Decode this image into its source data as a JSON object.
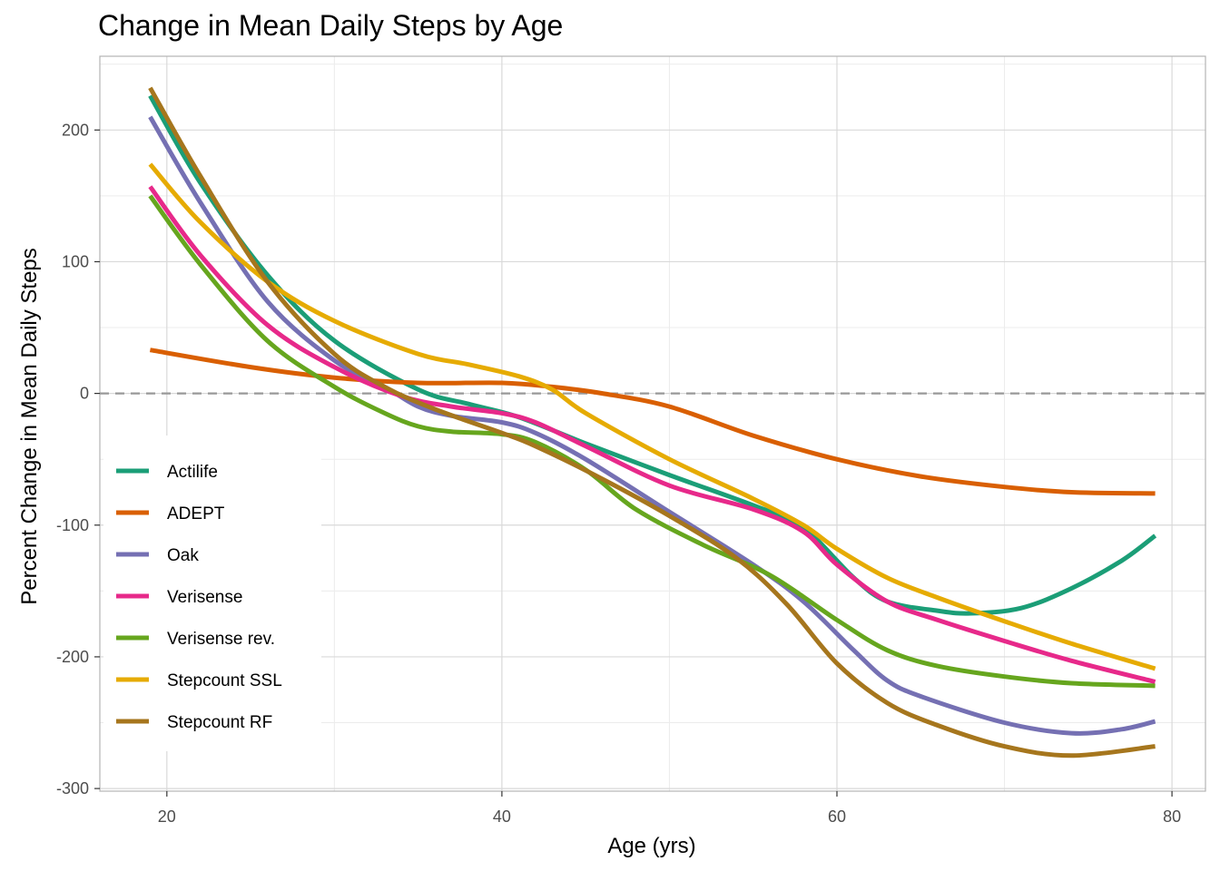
{
  "chart_data": {
    "type": "line",
    "title": "Change in Mean Daily Steps by Age",
    "xlabel": "Age (yrs)",
    "ylabel": "Percent Change in Mean Daily Steps",
    "xlim": [
      16,
      82
    ],
    "ylim": [
      -302,
      256
    ],
    "xticks": [
      20,
      40,
      60,
      80
    ],
    "yticks": [
      -300,
      -200,
      -100,
      0,
      100,
      200
    ],
    "xtick_labels": [
      "20",
      "40",
      "60",
      "80"
    ],
    "ytick_labels": [
      "-300",
      "-200",
      "-100",
      "0",
      "100",
      "200"
    ],
    "grid": true,
    "reference_line": {
      "y": 0,
      "style": "dashed",
      "color": "#999999"
    },
    "legend_position": "bottom-left",
    "series": [
      {
        "name": "Actilife",
        "color": "#1b9e77",
        "x": [
          19,
          22,
          26,
          30,
          35,
          38,
          41,
          45,
          50,
          55,
          58,
          61,
          63,
          66,
          68,
          71,
          74,
          77,
          79
        ],
        "y": [
          226,
          160,
          90,
          40,
          3,
          -8,
          -18,
          -38,
          -62,
          -85,
          -102,
          -140,
          -158,
          -165,
          -167,
          -163,
          -148,
          -127,
          -108
        ]
      },
      {
        "name": "ADEPT",
        "color": "#d95f02",
        "x": [
          19,
          25,
          30,
          35,
          40,
          43,
          46,
          50,
          55,
          60,
          65,
          70,
          74,
          79
        ],
        "y": [
          33,
          20,
          12,
          8,
          8,
          5,
          0,
          -10,
          -32,
          -50,
          -63,
          -71,
          -75,
          -76
        ]
      },
      {
        "name": "Oak",
        "color": "#7570b3",
        "x": [
          19,
          22,
          26,
          30,
          33,
          35,
          37,
          40,
          42,
          45,
          50,
          55,
          58,
          61,
          63,
          65,
          70,
          74,
          77,
          79
        ],
        "y": [
          210,
          145,
          70,
          25,
          5,
          -10,
          -17,
          -22,
          -30,
          -50,
          -90,
          -130,
          -158,
          -195,
          -218,
          -230,
          -250,
          -258,
          -255,
          -249
        ]
      },
      {
        "name": "Verisense",
        "color": "#e7298a",
        "x": [
          19,
          22,
          26,
          30,
          34,
          37,
          40,
          42,
          45,
          50,
          55,
          58,
          60,
          63,
          66,
          70,
          74,
          79
        ],
        "y": [
          157,
          105,
          52,
          20,
          -2,
          -10,
          -15,
          -22,
          -40,
          -70,
          -88,
          -105,
          -130,
          -158,
          -172,
          -188,
          -203,
          -219
        ]
      },
      {
        "name": "Verisense rev.",
        "color": "#66a61e",
        "x": [
          19,
          22,
          26,
          30,
          33,
          35,
          37,
          40,
          42,
          45,
          48,
          52,
          56,
          60,
          63,
          66,
          70,
          74,
          79
        ],
        "y": [
          150,
          98,
          40,
          5,
          -15,
          -25,
          -29,
          -31,
          -37,
          -58,
          -88,
          -115,
          -138,
          -172,
          -195,
          -207,
          -215,
          -220,
          -222
        ]
      },
      {
        "name": "Stepcount SSL",
        "color": "#e6ab02",
        "x": [
          19,
          22,
          26,
          30,
          35,
          38,
          41,
          43,
          45,
          50,
          55,
          58,
          60,
          63,
          66,
          70,
          74,
          79
        ],
        "y": [
          174,
          130,
          85,
          55,
          30,
          22,
          13,
          3,
          -15,
          -50,
          -80,
          -100,
          -118,
          -140,
          -155,
          -173,
          -190,
          -209
        ]
      },
      {
        "name": "Stepcount RF",
        "color": "#a6761d",
        "x": [
          19,
          22,
          26,
          30,
          33,
          36,
          40,
          42,
          46,
          50,
          54,
          57,
          60,
          63,
          66,
          70,
          74,
          79
        ],
        "y": [
          232,
          165,
          85,
          30,
          5,
          -12,
          -30,
          -40,
          -65,
          -93,
          -125,
          -160,
          -205,
          -235,
          -252,
          -268,
          -275,
          -268
        ]
      }
    ]
  }
}
